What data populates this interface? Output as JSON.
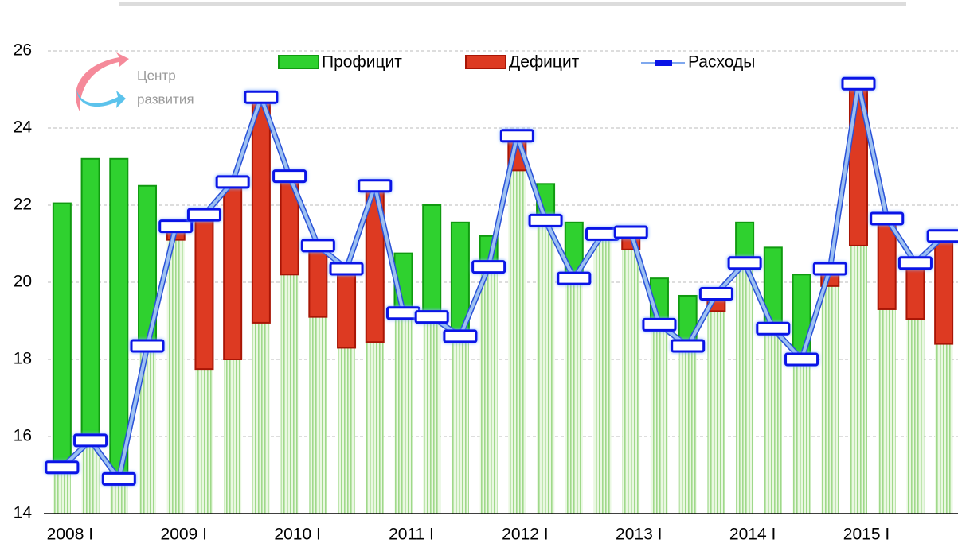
{
  "chart_data": {
    "type": "bar",
    "annotations": [
      "Центр",
      "развития"
    ],
    "categories": [
      "2008 I",
      null,
      null,
      null,
      "2009 I",
      null,
      null,
      null,
      "2010 I",
      null,
      null,
      null,
      "2011 I",
      null,
      null,
      null,
      "2012 I",
      null,
      null,
      null,
      "2013 I",
      null,
      null,
      null,
      "2014 I",
      null,
      null,
      null,
      "2015 I",
      null,
      null,
      null
    ],
    "series": [
      {
        "name": "Профицит",
        "color": "#2fd12f",
        "values": [
          6.85,
          7.3,
          8.3,
          4.15,
          0,
          0,
          0,
          0,
          0,
          0,
          0,
          0,
          1.55,
          2.9,
          2.95,
          0.8,
          0,
          0.95,
          1.45,
          0,
          0,
          1.2,
          1.3,
          0,
          1.05,
          2.1,
          2.2,
          0,
          0,
          0,
          0,
          0
        ]
      },
      {
        "name": "Дефицит",
        "color": "#dd3a22",
        "values": [
          0,
          0,
          0,
          0,
          0.35,
          4.0,
          4.6,
          5.85,
          2.55,
          1.85,
          2.05,
          4.05,
          0,
          0,
          0,
          0,
          0.9,
          0,
          0,
          0,
          0.45,
          0,
          0,
          0.45,
          0,
          0,
          0,
          0.45,
          4.2,
          2.35,
          1.45,
          2.8
        ]
      },
      {
        "name": "Расходы",
        "color": "#0a14e6",
        "values": [
          15.2,
          15.9,
          14.9,
          18.35,
          21.45,
          21.75,
          22.6,
          24.8,
          22.75,
          20.95,
          20.35,
          22.5,
          19.2,
          19.1,
          18.6,
          20.4,
          23.8,
          21.6,
          20.1,
          21.25,
          21.3,
          18.9,
          18.35,
          19.7,
          20.5,
          18.8,
          18.0,
          20.35,
          25.15,
          21.65,
          20.5,
          21.2
        ]
      }
    ],
    "ylim": [
      14,
      26
    ],
    "yticks": [
      14,
      16,
      18,
      20,
      22,
      24,
      26
    ],
    "grid": true
  }
}
